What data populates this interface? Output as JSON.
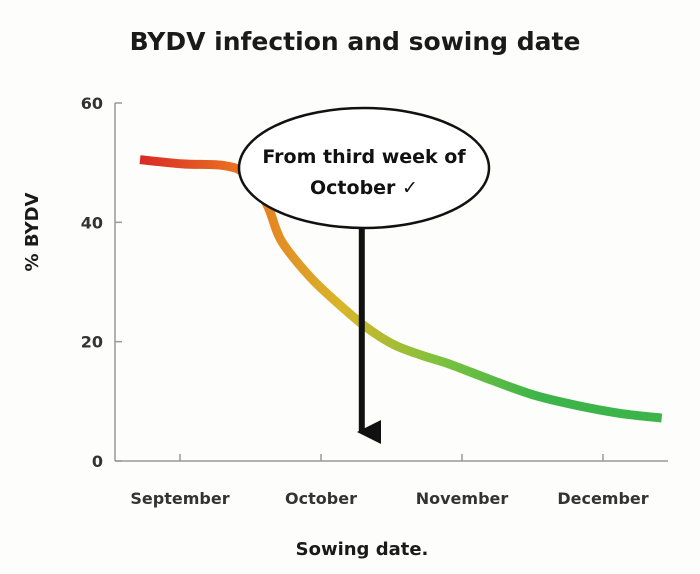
{
  "chart_data": {
    "type": "line",
    "title": "BYDV infection and sowing date",
    "xlabel": "Sowing date.",
    "ylabel": "% BYDV",
    "ylim": [
      0,
      60
    ],
    "yticks": [
      0,
      20,
      40,
      60
    ],
    "xticks": [
      "September",
      "October",
      "November",
      "December"
    ],
    "xlim": [
      0,
      4
    ],
    "grid": false,
    "series": [
      {
        "x": [
          0,
          0.3,
          0.6,
          0.75,
          0.9,
          1.0,
          1.2,
          1.4,
          1.6,
          1.8,
          2.0,
          2.2,
          2.5,
          2.8,
          3.1,
          3.4,
          3.7
        ],
        "values": [
          50.5,
          49.8,
          49.5,
          48,
          43,
          37,
          31,
          26.5,
          22.5,
          19.5,
          17.7,
          16.2,
          13.5,
          11,
          9.3,
          8,
          7.2
        ]
      }
    ],
    "gradient_colors": [
      "#d92a27",
      "#e9741f",
      "#d9b52a",
      "#7cc23e",
      "#3cb44a",
      "#3cb44a"
    ],
    "annotation": {
      "text_line1": "From third week of",
      "text_line2": "October ✓",
      "arrow_x": 1.8
    }
  }
}
